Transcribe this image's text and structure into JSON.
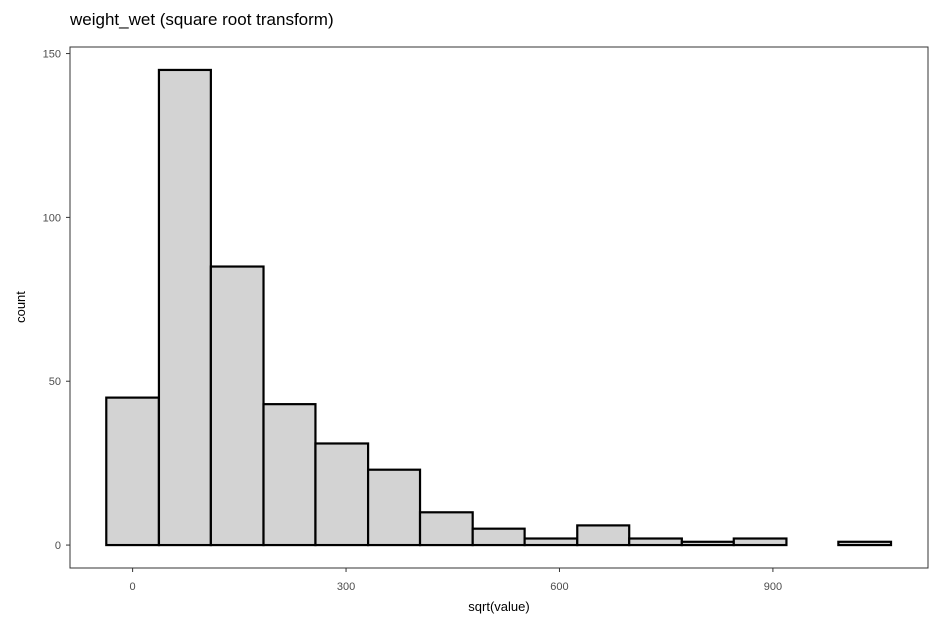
{
  "chart_data": {
    "type": "bar",
    "title": "weight_wet (square root transform)",
    "xlabel": "sqrt(value)",
    "ylabel": "count",
    "xlim": [
      -88,
      1118
    ],
    "ylim": [
      -7,
      152
    ],
    "x_ticks": [
      0,
      300,
      600,
      900
    ],
    "y_ticks": [
      0,
      50,
      100,
      150
    ],
    "grid": false,
    "bin_edges": [
      -37,
      37,
      110,
      184,
      257,
      331,
      404,
      478,
      551,
      625,
      698,
      772,
      845,
      919,
      992,
      1066
    ],
    "values": [
      45,
      145,
      85,
      43,
      31,
      23,
      10,
      5,
      2,
      6,
      2,
      1,
      2,
      0,
      1
    ],
    "bar_fill": "#d3d3d3",
    "bar_stroke": "#000000"
  }
}
